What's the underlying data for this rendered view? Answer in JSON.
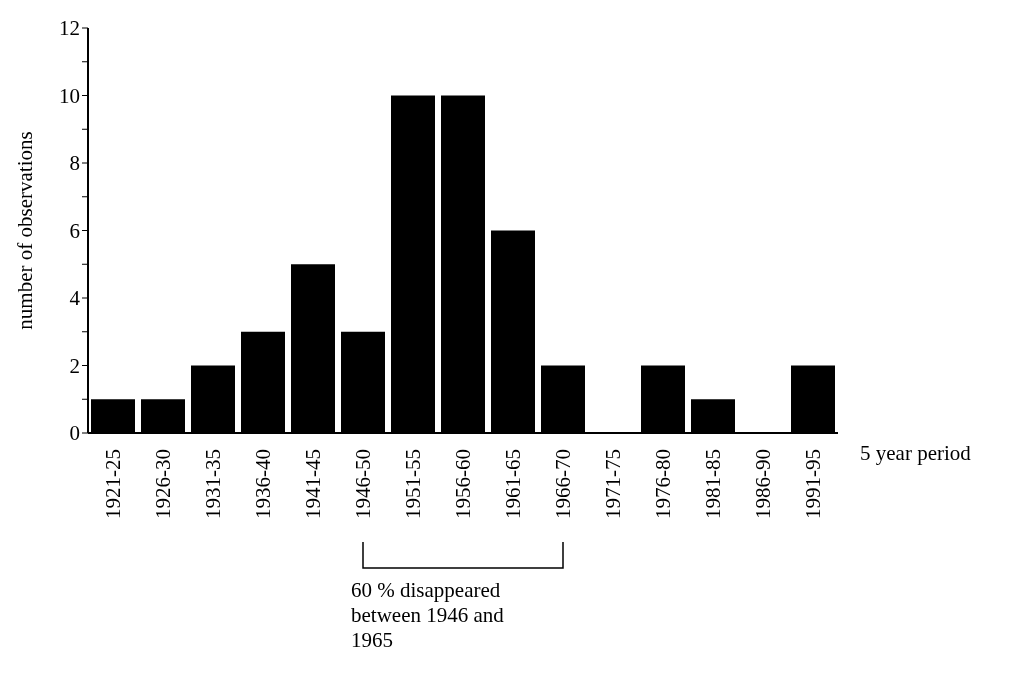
{
  "chart_data": {
    "type": "bar",
    "categories": [
      "1921-25",
      "1926-30",
      "1931-35",
      "1936-40",
      "1941-45",
      "1946-50",
      "1951-55",
      "1956-60",
      "1961-65",
      "1966-70",
      "1971-75",
      "1976-80",
      "1981-85",
      "1986-90",
      "1991-95"
    ],
    "values": [
      1,
      1,
      2,
      3,
      5,
      3,
      10,
      10,
      6,
      2,
      0,
      2,
      1,
      0,
      2
    ],
    "color": "#000000",
    "xlabel": "5 year period",
    "ylabel": "number of observations",
    "ylim": [
      0,
      12
    ],
    "yticks": [
      0,
      {
        "value": 1,
        "label": null
      },
      2,
      {
        "value": 3,
        "label": null
      },
      4,
      {
        "value": 5,
        "label": null
      },
      6,
      {
        "value": 7,
        "label": null
      },
      8,
      {
        "value": 9,
        "label": null
      },
      10,
      {
        "value": 11,
        "label": null
      },
      12
    ],
    "grid": false,
    "legend": false,
    "annotations": [
      "60 % disappeared between 1946 and 1965"
    ]
  }
}
